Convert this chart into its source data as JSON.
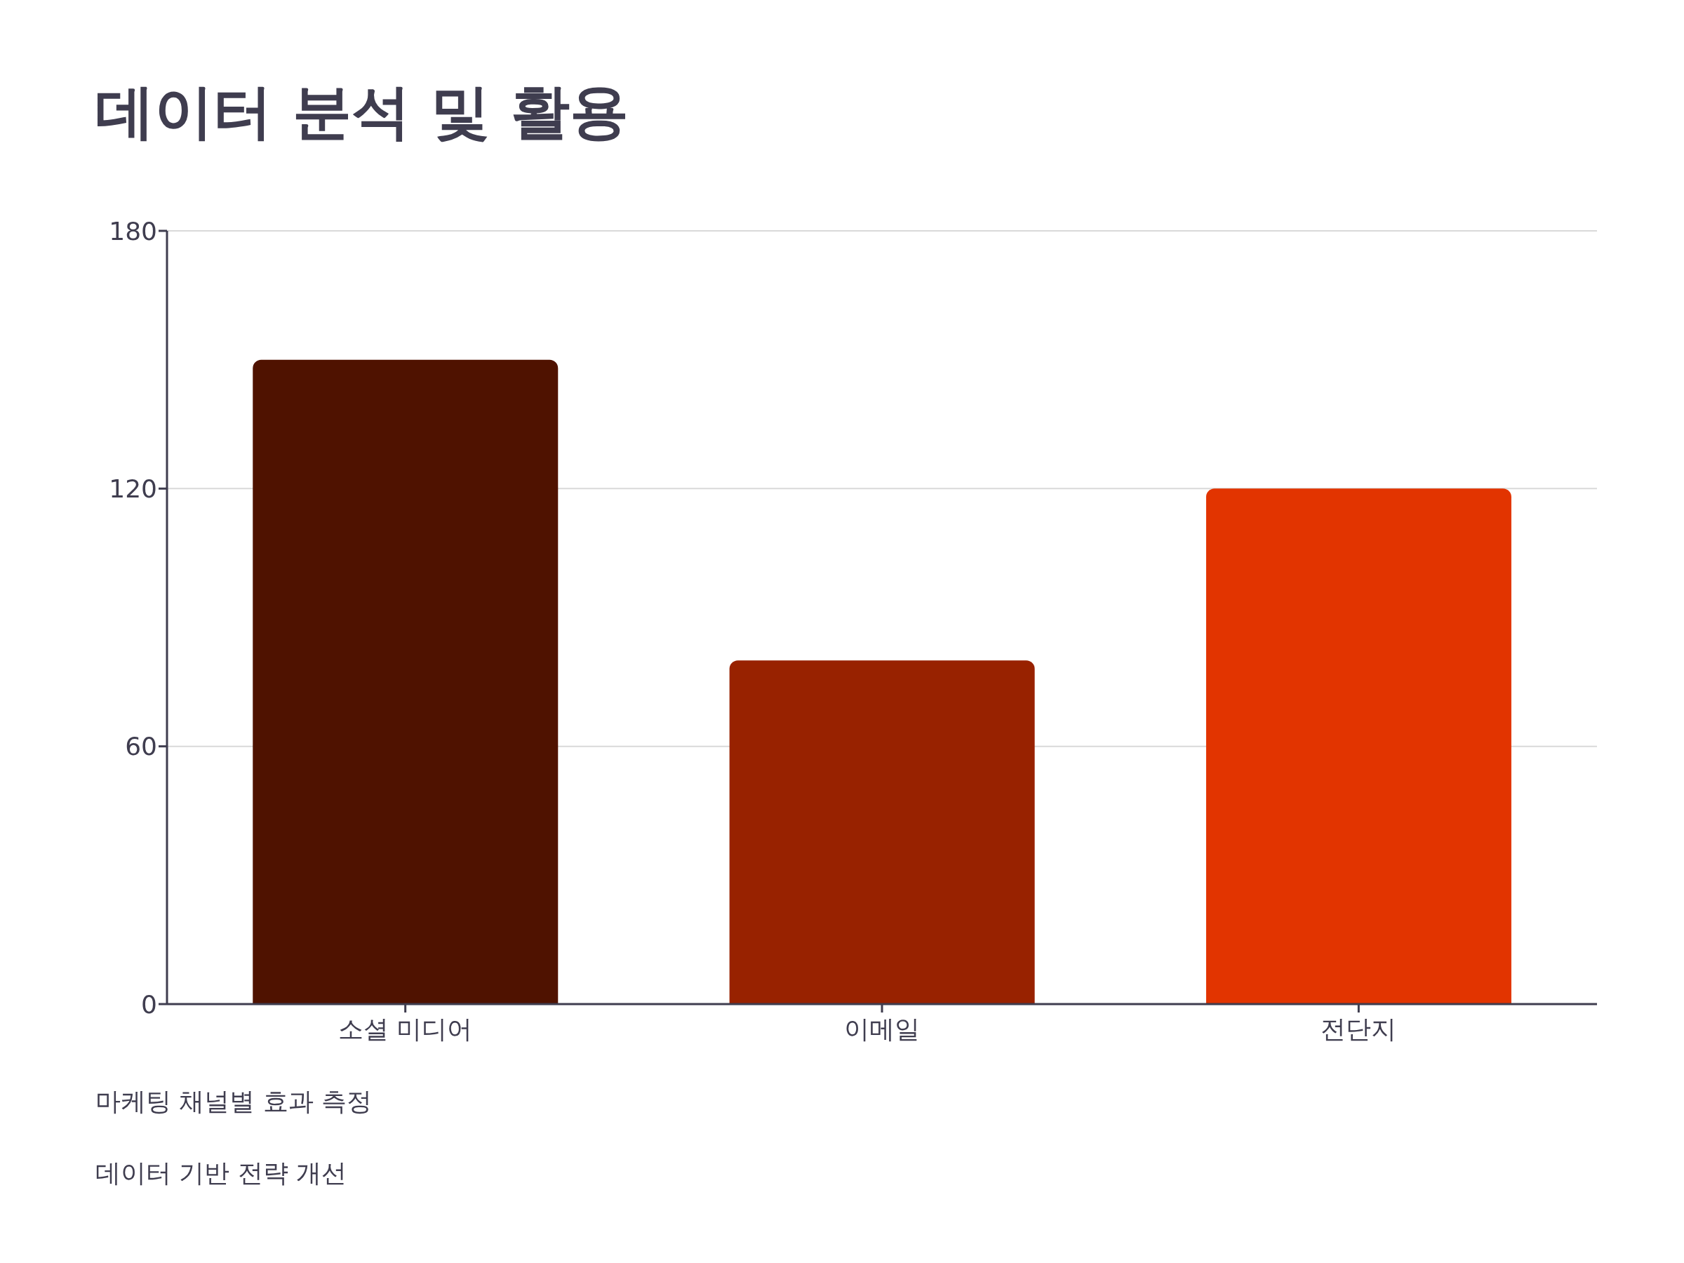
{
  "chart_data": {
    "type": "bar",
    "title": "데이터 분석 및 활용",
    "categories": [
      "소셜 미디어",
      "이메일",
      "전단지"
    ],
    "values": [
      150,
      80,
      120
    ],
    "colors": [
      "#4f1200",
      "#982200",
      "#e23400"
    ],
    "ylim": [
      0,
      180
    ],
    "yticks": [
      0,
      60,
      120,
      180
    ],
    "grid": "y",
    "annotations": [
      "마케팅 채널별 효과 측정",
      "데이터 기반 전략 개선"
    ]
  }
}
